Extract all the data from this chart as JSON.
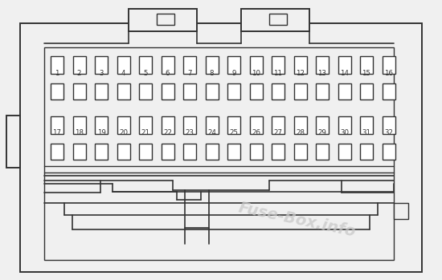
{
  "bg_color": "#f0f0f0",
  "line_color": "#333333",
  "fuse_fill": "#ffffff",
  "watermark_color": "#c8c8c8",
  "watermark_text": "Fuse-Box.info",
  "row1_fuses": [
    1,
    2,
    3,
    4,
    5,
    6,
    7,
    8,
    9,
    10,
    11,
    12,
    13,
    14,
    15,
    16
  ],
  "row2_fuses": [
    17,
    18,
    19,
    20,
    21,
    22,
    23,
    24,
    25,
    26,
    27,
    28,
    29,
    30,
    31,
    32
  ],
  "figsize": [
    5.5,
    3.49
  ],
  "dpi": 100
}
